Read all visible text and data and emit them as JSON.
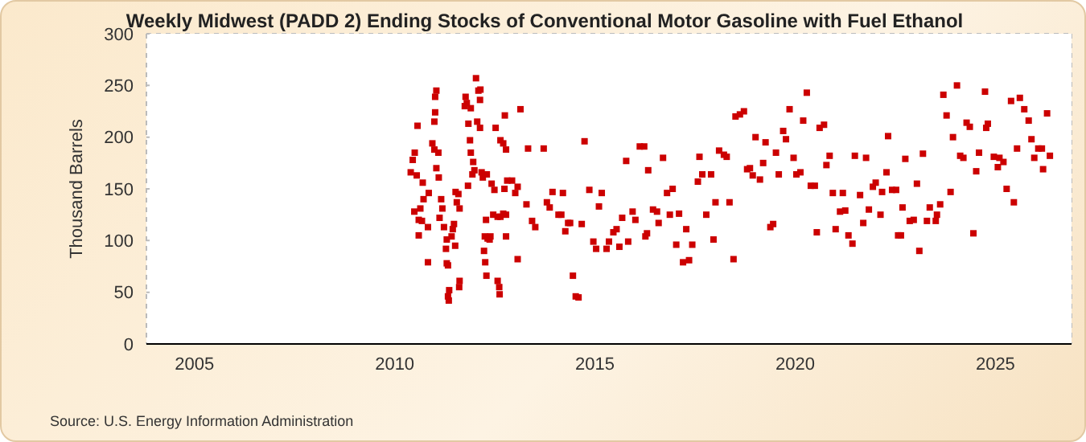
{
  "chart_data": {
    "type": "scatter",
    "title": "Weekly Midwest (PADD 2) Ending Stocks of Conventional Motor Gasoline with Fuel Ethanol",
    "ylabel": "Thousand Barrels",
    "annotations": [
      "Source: U.S. Energy Information Administration"
    ],
    "series": [
      {
        "color": "#cc0000",
        "x": [
          2010.4,
          2010.45,
          2010.49,
          2010.5,
          2010.55,
          2010.57,
          2010.6,
          2010.6,
          2010.64,
          2010.68,
          2010.7,
          2010.72,
          2010.83,
          2010.83,
          2010.85,
          2010.94,
          2010.99,
          2010.99,
          2011.01,
          2011.01,
          2011.04,
          2011.04,
          2011.09,
          2011.1,
          2011.12,
          2011.16,
          2011.19,
          2011.23,
          2011.28,
          2011.3,
          2011.3,
          2011.33,
          2011.33,
          2011.35,
          2011.36,
          2011.42,
          2011.45,
          2011.48,
          2011.51,
          2011.52,
          2011.55,
          2011.59,
          2011.61,
          2011.62,
          2011.62,
          2011.75,
          2011.77,
          2011.8,
          2011.83,
          2011.84,
          2011.88,
          2011.9,
          2011.9,
          2011.94,
          2011.96,
          2011.99,
          2012.03,
          2012.06,
          2012.09,
          2012.13,
          2012.13,
          2012.14,
          2012.17,
          2012.2,
          2012.23,
          2012.25,
          2012.26,
          2012.28,
          2012.29,
          2012.3,
          2012.32,
          2012.37,
          2012.39,
          2012.42,
          2012.46,
          2012.49,
          2012.52,
          2012.57,
          2012.57,
          2012.61,
          2012.62,
          2012.64,
          2012.64,
          2012.71,
          2012.71,
          2012.74,
          2012.75,
          2012.78,
          2012.78,
          2012.78,
          2012.81,
          2012.93,
          2013.01,
          2013.07,
          2013.07,
          2013.14,
          2013.29,
          2013.33,
          2013.43,
          2013.51,
          2013.72,
          2013.8,
          2013.87,
          2013.94,
          2014.09,
          2014.16,
          2014.2,
          2014.26,
          2014.33,
          2014.38,
          2014.45,
          2014.52,
          2014.59,
          2014.67,
          2014.74,
          2014.86,
          2014.96,
          2015.03,
          2015.1,
          2015.17,
          2015.29,
          2015.35,
          2015.46,
          2015.54,
          2015.61,
          2015.68,
          2015.78,
          2015.83,
          2015.94,
          2016.01,
          2016.12,
          2016.23,
          2016.26,
          2016.3,
          2016.33,
          2016.45,
          2016.55,
          2016.59,
          2016.7,
          2016.8,
          2016.87,
          2016.94,
          2017.03,
          2017.1,
          2017.2,
          2017.28,
          2017.35,
          2017.43,
          2017.57,
          2017.61,
          2017.68,
          2017.78,
          2017.9,
          2017.96,
          2018.01,
          2018.1,
          2018.22,
          2018.29,
          2018.36,
          2018.46,
          2018.51,
          2018.62,
          2018.72,
          2018.8,
          2018.87,
          2018.94,
          2019.01,
          2019.12,
          2019.2,
          2019.26,
          2019.38,
          2019.45,
          2019.52,
          2019.59,
          2019.7,
          2019.77,
          2019.86,
          2019.96,
          2020.03,
          2020.13,
          2020.2,
          2020.29,
          2020.39,
          2020.49,
          2020.54,
          2020.61,
          2020.72,
          2020.78,
          2020.86,
          2020.94,
          2021.01,
          2021.12,
          2021.19,
          2021.25,
          2021.33,
          2021.43,
          2021.49,
          2021.62,
          2021.7,
          2021.77,
          2021.84,
          2021.94,
          2022.01,
          2022.13,
          2022.17,
          2022.28,
          2022.32,
          2022.42,
          2022.52,
          2022.57,
          2022.64,
          2022.68,
          2022.75,
          2022.86,
          2022.96,
          2023.04,
          2023.1,
          2023.19,
          2023.29,
          2023.36,
          2023.51,
          2023.54,
          2023.62,
          2023.7,
          2023.78,
          2023.88,
          2023.94,
          2024.04,
          2024.12,
          2024.2,
          2024.28,
          2024.36,
          2024.45,
          2024.52,
          2024.59,
          2024.74,
          2024.77,
          2024.81,
          2024.96,
          2025.06,
          2025.1,
          2025.2,
          2025.28,
          2025.39,
          2025.46,
          2025.54,
          2025.61,
          2025.72,
          2025.83,
          2025.9,
          2025.97,
          2026.07,
          2026.16,
          2026.19,
          2026.29,
          2026.36
        ],
        "values": [
          166,
          178,
          128,
          185,
          163,
          211,
          120,
          105,
          131,
          119,
          156,
          140,
          113,
          79,
          146,
          194,
          188,
          215,
          239,
          224,
          245,
          170,
          185,
          161,
          122,
          140,
          131,
          113,
          92,
          101,
          78,
          76,
          46,
          42,
          52,
          104,
          111,
          116,
          95,
          147,
          137,
          145,
          55,
          131,
          61,
          230,
          239,
          233,
          153,
          213,
          197,
          228,
          185,
          164,
          176,
          168,
          257,
          215,
          245,
          236,
          209,
          246,
          166,
          161,
          90,
          104,
          79,
          120,
          66,
          164,
          102,
          101,
          104,
          155,
          125,
          149,
          209,
          123,
          61,
          55,
          48,
          123,
          197,
          126,
          194,
          150,
          221,
          188,
          125,
          104,
          158,
          158,
          146,
          152,
          82,
          227,
          135,
          189,
          119,
          113,
          189,
          137,
          132,
          147,
          125,
          125,
          146,
          109,
          117,
          117,
          66,
          46,
          45,
          116,
          196,
          149,
          99,
          92,
          133,
          146,
          92,
          99,
          108,
          111,
          94,
          122,
          177,
          99,
          128,
          120,
          191,
          191,
          104,
          107,
          168,
          130,
          128,
          117,
          180,
          146,
          125,
          150,
          96,
          126,
          79,
          111,
          81,
          96,
          157,
          181,
          164,
          125,
          164,
          101,
          137,
          187,
          183,
          181,
          137,
          82,
          220,
          222,
          225,
          169,
          170,
          163,
          200,
          159,
          175,
          195,
          113,
          116,
          185,
          164,
          206,
          198,
          227,
          180,
          164,
          166,
          216,
          243,
          153,
          153,
          108,
          209,
          212,
          173,
          182,
          146,
          111,
          128,
          146,
          129,
          105,
          97,
          182,
          144,
          117,
          180,
          130,
          152,
          156,
          125,
          147,
          166,
          201,
          149,
          149,
          105,
          105,
          132,
          179,
          119,
          120,
          155,
          90,
          184,
          119,
          132,
          119,
          125,
          135,
          241,
          221,
          147,
          200,
          250,
          182,
          180,
          214,
          210,
          107,
          167,
          185,
          244,
          209,
          213,
          181,
          171,
          180,
          176,
          150,
          235,
          137,
          189,
          238,
          227,
          216,
          198,
          180,
          189,
          189,
          169,
          223,
          182
        ]
      }
    ],
    "xlim": [
      2003.8,
      2026.9
    ],
    "xticks": [
      2005,
      2010,
      2015,
      2020,
      2025
    ],
    "ylim": [
      0,
      300
    ],
    "yticks": [
      0,
      50,
      100,
      150,
      200,
      250,
      300
    ],
    "grid": true,
    "legend": false,
    "marker": "square"
  }
}
